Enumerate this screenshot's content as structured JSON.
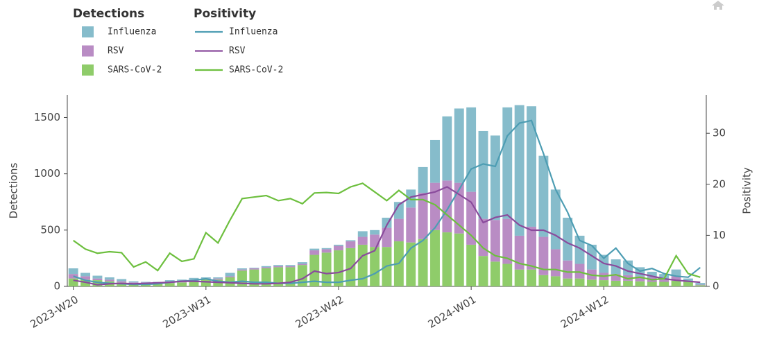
{
  "chart_data": {
    "type": "bar",
    "stacked": true,
    "legend_groups": [
      "Detections",
      "Positivity"
    ],
    "ylabel": "Detections",
    "y2label": "Positivity",
    "categories": [
      "2023-W20",
      null,
      null,
      null,
      null,
      null,
      null,
      null,
      null,
      null,
      null,
      "2023-W31",
      null,
      null,
      null,
      null,
      null,
      null,
      null,
      null,
      null,
      null,
      "2023-W42",
      null,
      null,
      null,
      null,
      null,
      null,
      null,
      null,
      null,
      null,
      "2024-W01",
      null,
      null,
      null,
      null,
      null,
      null,
      null,
      null,
      null,
      null,
      "2024-W12",
      null,
      null,
      null,
      null,
      null,
      null,
      null,
      null
    ],
    "ylim": [
      0,
      1700
    ],
    "yticks": [
      0,
      500,
      1000,
      1500
    ],
    "y2lim": [
      0,
      37.5
    ],
    "y2ticks": [
      0,
      10,
      20,
      30
    ],
    "series": [
      {
        "name": "SARS-CoV-2",
        "type": "bar",
        "color": "#8fcc6a",
        "values": [
          70,
          60,
          55,
          45,
          35,
          25,
          25,
          25,
          30,
          35,
          50,
          60,
          60,
          80,
          140,
          150,
          160,
          170,
          170,
          190,
          280,
          300,
          320,
          340,
          370,
          350,
          350,
          400,
          390,
          420,
          500,
          480,
          470,
          370,
          270,
          220,
          200,
          150,
          150,
          100,
          90,
          70,
          70,
          60,
          55,
          50,
          50,
          45,
          40,
          40,
          50,
          40,
          10
        ]
      },
      {
        "name": "RSV",
        "type": "bar",
        "color": "#b98cc4",
        "values": [
          40,
          30,
          15,
          15,
          10,
          10,
          10,
          10,
          10,
          10,
          10,
          10,
          10,
          10,
          10,
          10,
          10,
          10,
          10,
          10,
          40,
          30,
          40,
          60,
          70,
          110,
          170,
          200,
          310,
          410,
          420,
          460,
          450,
          470,
          330,
          370,
          400,
          300,
          380,
          340,
          240,
          160,
          130,
          90,
          65,
          60,
          50,
          45,
          40,
          30,
          40,
          10,
          5
        ]
      },
      {
        "name": "Influenza",
        "type": "bar",
        "color": "#86bccb",
        "values": [
          50,
          30,
          25,
          20,
          20,
          10,
          5,
          5,
          15,
          15,
          15,
          10,
          10,
          30,
          10,
          5,
          10,
          10,
          10,
          15,
          15,
          10,
          10,
          10,
          50,
          40,
          90,
          150,
          160,
          230,
          380,
          570,
          660,
          750,
          780,
          750,
          990,
          1160,
          1070,
          720,
          530,
          380,
          250,
          220,
          160,
          130,
          130,
          80,
          50,
          40,
          60,
          20,
          15
        ]
      },
      {
        "name": "Influenza",
        "type": "line",
        "axis": "y2",
        "color": "#4d9db3",
        "values": [
          2,
          1.2,
          0.8,
          0.6,
          0.5,
          0.4,
          0.4,
          0.5,
          0.8,
          1,
          1.2,
          1.5,
          1,
          0.8,
          1,
          0.8,
          0.8,
          0.6,
          0.6,
          0.8,
          1,
          0.8,
          0.8,
          1.2,
          1.5,
          2.5,
          4,
          4.5,
          7.5,
          9,
          11.5,
          15,
          19,
          23,
          24,
          23.5,
          29.5,
          32,
          32.5,
          26,
          19,
          14.5,
          9,
          8,
          5.5,
          7.5,
          4.5,
          3,
          3.5,
          2.5,
          2,
          1.8,
          3.7
        ]
      },
      {
        "name": "RSV",
        "type": "line",
        "axis": "y2",
        "color": "#8a4b9c",
        "values": [
          1.2,
          0.8,
          0.3,
          0.5,
          0.6,
          0.5,
          0.6,
          0.7,
          0.8,
          1,
          1,
          0.9,
          0.8,
          0.7,
          0.6,
          0.5,
          0.5,
          0.6,
          0.8,
          1.5,
          3,
          2.5,
          2.7,
          3.5,
          6,
          7,
          12,
          16,
          17.5,
          18,
          18.5,
          19.5,
          18,
          16.5,
          12.5,
          13.5,
          14,
          12,
          11,
          11,
          10,
          8.5,
          7.5,
          6,
          4.5,
          4,
          3,
          2.5,
          2,
          1.5,
          1.2,
          1,
          0.8
        ]
      },
      {
        "name": "SARS-CoV-2",
        "type": "line",
        "axis": "y2",
        "color": "#6dbf3e",
        "values": [
          9,
          7.3,
          6.5,
          6.8,
          6.6,
          3.8,
          4.8,
          3.1,
          6.5,
          4.9,
          5.4,
          10.5,
          8.5,
          13,
          17.2,
          17.5,
          17.8,
          16.8,
          17.2,
          16.2,
          18.3,
          18.4,
          18.2,
          19.5,
          20.2,
          18.5,
          16.8,
          18.8,
          17,
          17,
          16,
          14,
          12,
          10,
          7.5,
          6,
          5.5,
          4.5,
          4,
          3.3,
          3.3,
          2.8,
          2.8,
          2.2,
          2,
          2.3,
          1.5,
          1.8,
          1.3,
          1.5,
          6,
          2.5,
          1.8
        ]
      }
    ]
  }
}
